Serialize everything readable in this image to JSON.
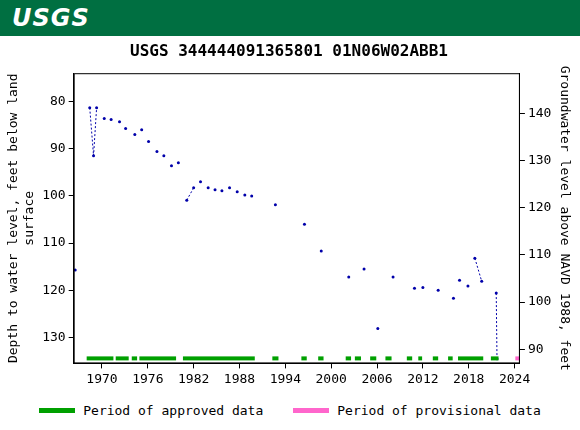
{
  "header": {
    "logo": "USGS"
  },
  "chart_data": {
    "type": "scatter",
    "title": "USGS 344444091365801 01N06W02ABB1",
    "y_label": [
      "Depth to water level, feet below land",
      "surface"
    ],
    "y2_label": "Groundwater level above NAVD 1988, feet",
    "xlim": [
      1966.3,
      2024.7
    ],
    "xticks": [
      1970,
      1976,
      1982,
      1988,
      1994,
      2000,
      2006,
      2012,
      2018,
      2024
    ],
    "ylim": [
      74,
      135.5
    ],
    "yticks": [
      80,
      90,
      100,
      110,
      120,
      130
    ],
    "y2lim": [
      87,
      148.5
    ],
    "y2ticks": [
      90,
      100,
      110,
      120,
      130,
      140
    ],
    "grid": false,
    "legend": "bottom",
    "x": [
      1966.5,
      1966.5,
      1968.4,
      1968.9,
      1969.3,
      1969.3,
      1970.3,
      1970.3,
      1971.2,
      1971.2,
      1972.3,
      1972.3,
      1973.1,
      1973.1,
      1974.3,
      1974.3,
      1975.2,
      1975.2,
      1976.1,
      1976.1,
      1977.2,
      1977.2,
      1978.1,
      1978.1,
      1979.1,
      1979.1,
      1980.0,
      1980.0,
      1981.1,
      1982.0,
      1982.0,
      1982.9,
      1982.9,
      1983.9,
      1983.9,
      1984.8,
      1984.8,
      1985.7,
      1985.7,
      1986.7,
      1986.7,
      1987.7,
      1987.7,
      1988.7,
      1988.7,
      1989.6,
      1989.6,
      1992.7,
      1992.7,
      1996.5,
      1996.5,
      1998.7,
      1998.7,
      2002.3,
      2002.3,
      2004.3,
      2004.3,
      2006.1,
      2006.1,
      2008.1,
      2008.1,
      2010.9,
      2010.9,
      2012.0,
      2012.0,
      2014.0,
      2014.0,
      2016.0,
      2016.0,
      2016.8,
      2016.8,
      2017.9,
      2017.9,
      2018.8,
      2019.7,
      2019.7,
      2021.6,
      2021.7
    ],
    "series": [
      {
        "color": "#0000aa",
        "marker": "circle",
        "line_style": "dotted",
        "values": [
          115.7,
          null,
          81.3,
          91.5,
          81.3,
          null,
          83.6,
          null,
          83.8,
          null,
          84.3,
          null,
          85.7,
          null,
          87.0,
          null,
          86.0,
          null,
          88.5,
          null,
          90.6,
          null,
          91.5,
          null,
          93.6,
          null,
          93.0,
          null,
          100.9,
          98.3,
          null,
          97.0,
          null,
          98.3,
          null,
          98.7,
          null,
          98.9,
          null,
          98.3,
          null,
          99.1,
          null,
          99.8,
          null,
          100.0,
          null,
          101.9,
          null,
          106.0,
          null,
          111.7,
          null,
          117.2,
          null,
          115.5,
          null,
          128.1,
          null,
          117.2,
          null,
          119.6,
          null,
          119.4,
          null,
          120.0,
          null,
          121.7,
          null,
          117.9,
          null,
          119.1,
          null,
          113.2,
          118.1,
          null,
          120.6,
          134.5
        ]
      }
    ],
    "periods": [
      {
        "name": "Period of approved data",
        "color": "#00a000",
        "ranges": [
          [
            1968.0,
            1971.5
          ],
          [
            1971.8,
            1973.5
          ],
          [
            1973.9,
            1974.6
          ],
          [
            1974.9,
            1979.7
          ],
          [
            1980.6,
            1990.0
          ],
          [
            1992.3,
            1993.1
          ],
          [
            1996.1,
            1996.8
          ],
          [
            1998.3,
            1999.0
          ],
          [
            2001.9,
            2002.6
          ],
          [
            2003.1,
            2003.9
          ],
          [
            2005.1,
            2005.9
          ],
          [
            2007.1,
            2007.9
          ],
          [
            2009.9,
            2010.6
          ],
          [
            2011.4,
            2011.9
          ],
          [
            2013.3,
            2014.0
          ],
          [
            2015.3,
            2015.9
          ],
          [
            2016.6,
            2019.9
          ],
          [
            2020.9,
            2021.9
          ]
        ]
      },
      {
        "name": "Period of provisional data",
        "color": "#ff66cc",
        "ranges": [
          [
            2024.1,
            2024.6
          ]
        ]
      }
    ]
  }
}
